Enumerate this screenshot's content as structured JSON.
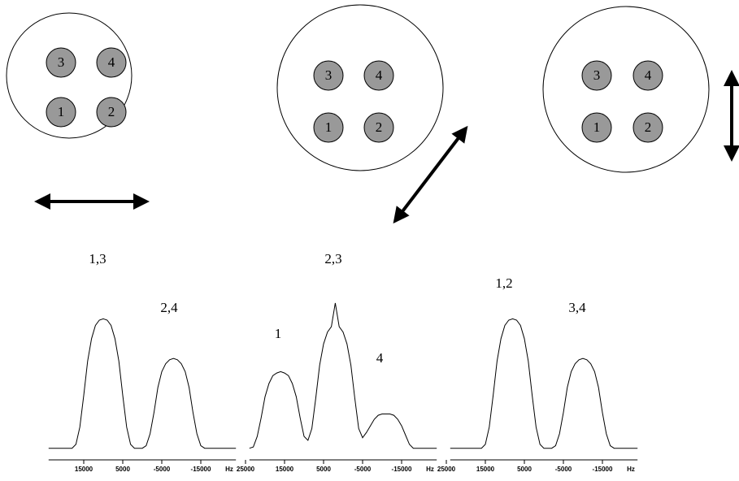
{
  "diagrams": [
    {
      "spots": [
        "3",
        "4",
        "1",
        "2"
      ]
    },
    {
      "spots": [
        "3",
        "4",
        "1",
        "2"
      ]
    },
    {
      "spots": [
        "3",
        "4",
        "1",
        "2"
      ]
    }
  ],
  "chart_data": [
    {
      "type": "line",
      "color": "#000000",
      "xlabel": "Hz",
      "annotations": [
        "1,3",
        "2,4"
      ],
      "xlim": [
        25000,
        -25000
      ],
      "ylim": [
        0,
        115
      ],
      "xticks": [
        15000,
        5000,
        -5000,
        -15000
      ],
      "x": [
        24000,
        23000,
        22000,
        21000,
        20000,
        19000,
        18000,
        17000,
        16000,
        15000,
        14000,
        13000,
        12000,
        11000,
        10000,
        9000,
        8000,
        7000,
        6000,
        5000,
        4000,
        3000,
        2000,
        1000,
        0,
        -1000,
        -2000,
        -3000,
        -4000,
        -5000,
        -6000,
        -7000,
        -8000,
        -9000,
        -10000,
        -11000,
        -12000,
        -13000,
        -14000,
        -15000,
        -16000,
        -17000,
        -18000,
        -19000,
        -20000,
        -21000,
        -22000,
        -23000,
        -24000
      ],
      "values": [
        2,
        2,
        2,
        2,
        2,
        2,
        2,
        5,
        18,
        42,
        68,
        85,
        95,
        99,
        100,
        99,
        95,
        85,
        68,
        42,
        18,
        5,
        2,
        2,
        2,
        4,
        13,
        29,
        48,
        60,
        66,
        69,
        70,
        69,
        66,
        60,
        48,
        29,
        13,
        4,
        2,
        2,
        2,
        2,
        2,
        2,
        2,
        2,
        2
      ]
    },
    {
      "type": "line",
      "color": "#000000",
      "xlabel": "Hz",
      "annotations": [
        "2,3",
        "1",
        "4"
      ],
      "xlim": [
        25000,
        -25000
      ],
      "ylim": [
        0,
        115
      ],
      "xticks": [
        25000,
        15000,
        5000,
        -5000,
        -15000
      ],
      "x": [
        24000,
        23000,
        22000,
        21000,
        20000,
        19000,
        18000,
        17000,
        16000,
        15000,
        14000,
        13000,
        12000,
        11000,
        10000,
        9000,
        8000,
        7000,
        6000,
        5000,
        4000,
        3000,
        2000,
        1000,
        0,
        -1000,
        -2000,
        -3000,
        -4000,
        -5000,
        -6000,
        -7000,
        -8000,
        -9000,
        -10000,
        -11000,
        -12000,
        -13000,
        -14000,
        -15000,
        -16000,
        -17000,
        -18000,
        -19000,
        -20000,
        -21000,
        -22000,
        -23000,
        -24000
      ],
      "values": [
        2,
        3,
        11,
        25,
        41,
        51,
        57,
        59,
        60,
        59,
        57,
        51,
        41,
        25,
        11,
        8,
        17,
        40,
        65,
        81,
        90,
        94,
        112,
        94,
        90,
        81,
        65,
        40,
        17,
        10,
        14,
        19,
        24,
        27,
        28,
        28,
        28,
        27,
        24,
        19,
        12,
        5,
        2,
        2,
        2,
        2,
        2,
        2,
        2
      ]
    },
    {
      "type": "line",
      "color": "#000000",
      "xlabel": "Hz",
      "annotations": [
        "1,2",
        "3,4"
      ],
      "xlim": [
        25000,
        -25000
      ],
      "ylim": [
        0,
        115
      ],
      "xticks": [
        25000,
        15000,
        5000,
        -5000,
        -15000
      ],
      "x": [
        24000,
        23000,
        22000,
        21000,
        20000,
        19000,
        18000,
        17000,
        16000,
        15000,
        14000,
        13000,
        12000,
        11000,
        10000,
        9000,
        8000,
        7000,
        6000,
        5000,
        4000,
        3000,
        2000,
        1000,
        0,
        -1000,
        -2000,
        -3000,
        -4000,
        -5000,
        -6000,
        -7000,
        -8000,
        -9000,
        -10000,
        -11000,
        -12000,
        -13000,
        -14000,
        -15000,
        -16000,
        -17000,
        -18000,
        -19000,
        -20000,
        -21000,
        -22000,
        -23000,
        -24000
      ],
      "values": [
        2,
        2,
        2,
        2,
        2,
        2,
        2,
        2,
        2,
        5,
        18,
        42,
        68,
        85,
        95,
        99,
        100,
        99,
        95,
        85,
        68,
        42,
        18,
        5,
        2,
        2,
        2,
        4,
        13,
        29,
        48,
        60,
        66,
        69,
        70,
        69,
        66,
        60,
        48,
        29,
        13,
        4,
        2,
        2,
        2,
        2,
        2,
        2,
        2
      ]
    }
  ]
}
